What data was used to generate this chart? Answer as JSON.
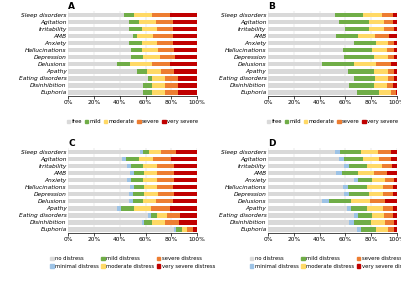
{
  "categories": [
    "Sleep disorders",
    "Agitation",
    "Irritability",
    "AMB",
    "Anxiety",
    "Hallucinations",
    "Depression",
    "Delusions",
    "Apathy",
    "Eating disorders",
    "Disinhibition",
    "Euphoria"
  ],
  "panel_A": {
    "title": "A",
    "data": [
      [
        43,
        8,
        14,
        14,
        21
      ],
      [
        47,
        8,
        13,
        13,
        19
      ],
      [
        47,
        10,
        12,
        12,
        19
      ],
      [
        50,
        3,
        13,
        15,
        19
      ],
      [
        47,
        10,
        12,
        12,
        19
      ],
      [
        49,
        8,
        13,
        12,
        18
      ],
      [
        49,
        9,
        13,
        12,
        17
      ],
      [
        38,
        10,
        17,
        14,
        21
      ],
      [
        53,
        8,
        11,
        10,
        18
      ],
      [
        62,
        3,
        10,
        10,
        15
      ],
      [
        58,
        7,
        10,
        10,
        15
      ],
      [
        58,
        7,
        10,
        10,
        15
      ]
    ],
    "legend_labels": [
      "free",
      "mild",
      "moderate",
      "severe",
      "very severe"
    ],
    "legend_colors": [
      "#d9d9d9",
      "#70ad47",
      "#ffd966",
      "#ed7d31",
      "#c00000"
    ],
    "xlabel_vals": [
      "0%",
      "20%",
      "40%",
      "60%",
      "80%",
      "100%"
    ]
  },
  "panel_B": {
    "title": "B",
    "data": [
      [
        52,
        22,
        14,
        9,
        3
      ],
      [
        55,
        23,
        12,
        7,
        3
      ],
      [
        60,
        18,
        12,
        8,
        2
      ],
      [
        53,
        17,
        13,
        11,
        6
      ],
      [
        67,
        17,
        9,
        5,
        2
      ],
      [
        58,
        23,
        11,
        6,
        2
      ],
      [
        59,
        23,
        11,
        5,
        2
      ],
      [
        42,
        25,
        17,
        11,
        5
      ],
      [
        62,
        20,
        11,
        5,
        2
      ],
      [
        67,
        16,
        10,
        5,
        2
      ],
      [
        63,
        19,
        10,
        5,
        3
      ],
      [
        69,
        17,
        9,
        4,
        1
      ]
    ],
    "legend_labels": [
      "free",
      "mild",
      "moderate",
      "severe",
      "very severe"
    ],
    "legend_colors": [
      "#d9d9d9",
      "#70ad47",
      "#ffd966",
      "#ed7d31",
      "#c00000"
    ],
    "xlabel_vals": [
      "0%",
      "20%",
      "40%",
      "60%",
      "80%",
      "100%"
    ]
  },
  "panel_C": {
    "title": "C",
    "data": [
      [
        56,
        2,
        5,
        9,
        12,
        16
      ],
      [
        42,
        3,
        10,
        11,
        14,
        20
      ],
      [
        46,
        3,
        9,
        11,
        13,
        18
      ],
      [
        48,
        3,
        8,
        10,
        13,
        18
      ],
      [
        46,
        3,
        9,
        11,
        13,
        18
      ],
      [
        48,
        3,
        8,
        10,
        12,
        19
      ],
      [
        47,
        3,
        9,
        11,
        12,
        18
      ],
      [
        47,
        3,
        8,
        10,
        13,
        19
      ],
      [
        38,
        3,
        10,
        13,
        15,
        21
      ],
      [
        62,
        2,
        5,
        8,
        10,
        13
      ],
      [
        57,
        2,
        6,
        10,
        11,
        14
      ],
      [
        82,
        2,
        4,
        4,
        5,
        3
      ]
    ],
    "legend_labels": [
      "no distress",
      "minimal distress",
      "mild distress",
      "moderate distress",
      "severe distress",
      "very severe distress"
    ],
    "legend_colors": [
      "#d9d9d9",
      "#9dc3e6",
      "#70ad47",
      "#ffd966",
      "#ed7d31",
      "#c00000"
    ],
    "xlabel_vals": [
      "0%",
      "20%",
      "40%",
      "60%",
      "80%",
      "100%"
    ]
  },
  "panel_D": {
    "title": "D",
    "data": [
      [
        52,
        4,
        16,
        13,
        10,
        5
      ],
      [
        55,
        4,
        15,
        12,
        9,
        5
      ],
      [
        59,
        4,
        14,
        11,
        8,
        4
      ],
      [
        53,
        4,
        13,
        12,
        10,
        8
      ],
      [
        67,
        3,
        11,
        10,
        7,
        2
      ],
      [
        58,
        4,
        15,
        12,
        8,
        3
      ],
      [
        59,
        4,
        15,
        11,
        8,
        3
      ],
      [
        42,
        5,
        17,
        15,
        12,
        9
      ],
      [
        61,
        3,
        13,
        12,
        8,
        3
      ],
      [
        67,
        3,
        11,
        9,
        7,
        3
      ],
      [
        63,
        4,
        13,
        11,
        7,
        2
      ],
      [
        69,
        3,
        12,
        9,
        5,
        2
      ]
    ],
    "legend_labels": [
      "no distress",
      "minimal distress",
      "mild distress",
      "moderate distress",
      "severe distress",
      "very severe distress"
    ],
    "legend_colors": [
      "#d9d9d9",
      "#9dc3e6",
      "#70ad47",
      "#ffd966",
      "#ed7d31",
      "#c00000"
    ],
    "xlabel_vals": [
      "0%",
      "20%",
      "40%",
      "60%",
      "80%",
      "100%"
    ]
  },
  "background_color": "#ffffff",
  "bar_height": 0.65,
  "label_fontsize": 4.2,
  "tick_fontsize": 4.2,
  "title_fontsize": 6.5,
  "legend_fontsize": 3.8
}
